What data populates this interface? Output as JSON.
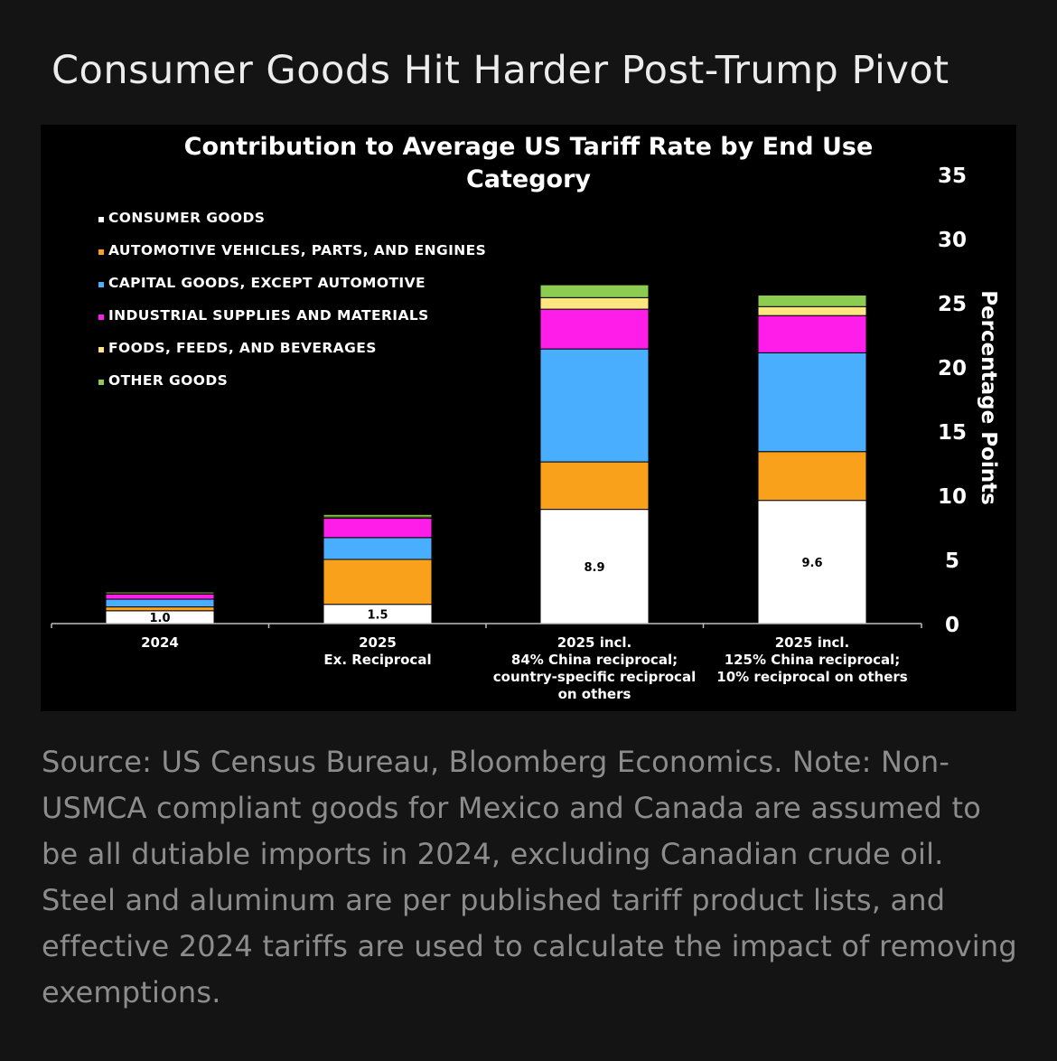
{
  "header": {
    "title": "Consumer Goods Hit Harder Post-Trump Pivot"
  },
  "footer": {
    "note": "Source: US Census Bureau, Bloomberg Economics. Note: Non-USMCA compliant goods for Mexico and Canada are assumed to be all dutiable imports in 2024, excluding Canadian crude oil. Steel and aluminum are per published tariff product lists, and effective 2024 tariffs are used to calculate the impact of removing exemptions."
  },
  "colors": {
    "page_background": "#141414",
    "chart_background": "#000000",
    "text": "#ffffff",
    "axis": "#bdbdbd"
  },
  "chart_data": {
    "type": "bar",
    "stacked": true,
    "title_lines": [
      "Contribution to Average US Tariff Rate by End Use",
      "Category"
    ],
    "ylabel": "Percentage Points",
    "ylim": [
      0,
      35
    ],
    "yticks": [
      0,
      5,
      10,
      15,
      20,
      25,
      30,
      35
    ],
    "y_axis_side": "right",
    "legend_position": "top-left",
    "categories": [
      [
        "2024"
      ],
      [
        "2025",
        "Ex. Reciprocal"
      ],
      [
        "2025 incl.",
        "84% China reciprocal;",
        "country-specific reciprocal",
        "on others"
      ],
      [
        "2025 incl.",
        "125% China reciprocal;",
        "10% reciprocal on others"
      ]
    ],
    "series": [
      {
        "name": "CONSUMER GOODS",
        "color": "#ffffff",
        "values": [
          1.0,
          1.5,
          8.9,
          9.6
        ],
        "labels": [
          "1.0",
          "1.5",
          "8.9",
          "9.6"
        ]
      },
      {
        "name": "AUTOMOTIVE VEHICLES, PARTS, AND ENGINES",
        "color": "#f9a11b",
        "values": [
          0.3,
          3.5,
          3.7,
          3.8
        ]
      },
      {
        "name": "CAPITAL GOODS, EXCEPT AUTOMOTIVE",
        "color": "#4aaefe",
        "values": [
          0.6,
          1.7,
          8.8,
          7.7
        ]
      },
      {
        "name": "INDUSTRIAL SUPPLIES AND MATERIALS",
        "color": "#ff1dea",
        "values": [
          0.4,
          1.5,
          3.1,
          2.9
        ]
      },
      {
        "name": "FOODS, FEEDS, AND BEVERAGES",
        "color": "#ffe680",
        "values": [
          0.1,
          0.1,
          0.9,
          0.7
        ]
      },
      {
        "name": "OTHER GOODS",
        "color": "#8ccc50",
        "values": [
          0.1,
          0.2,
          1.0,
          0.9
        ]
      }
    ]
  }
}
